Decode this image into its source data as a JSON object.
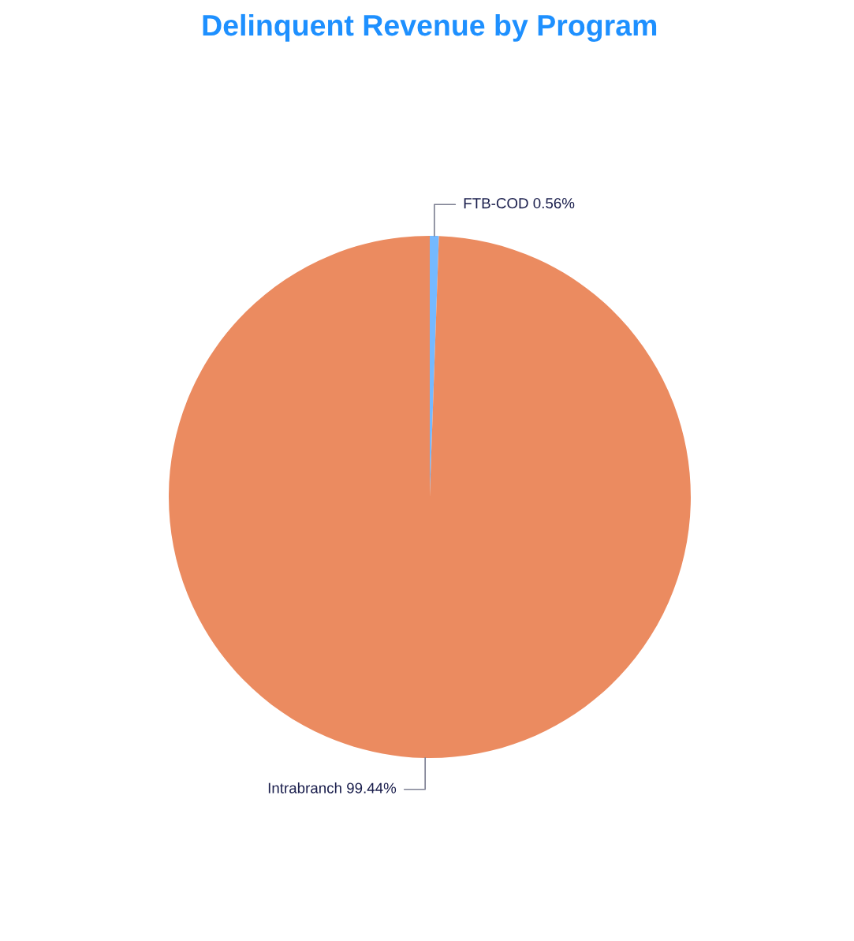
{
  "chart_data": {
    "type": "pie",
    "title": "Delinquent Revenue by Program",
    "categories": [
      "FTB-COD",
      "Intrabranch"
    ],
    "values": [
      0.56,
      99.44
    ],
    "value_labels": [
      "0.56%",
      "99.44%"
    ],
    "colors": [
      "#74b9ff",
      "#eb8b60"
    ],
    "legend": false
  }
}
